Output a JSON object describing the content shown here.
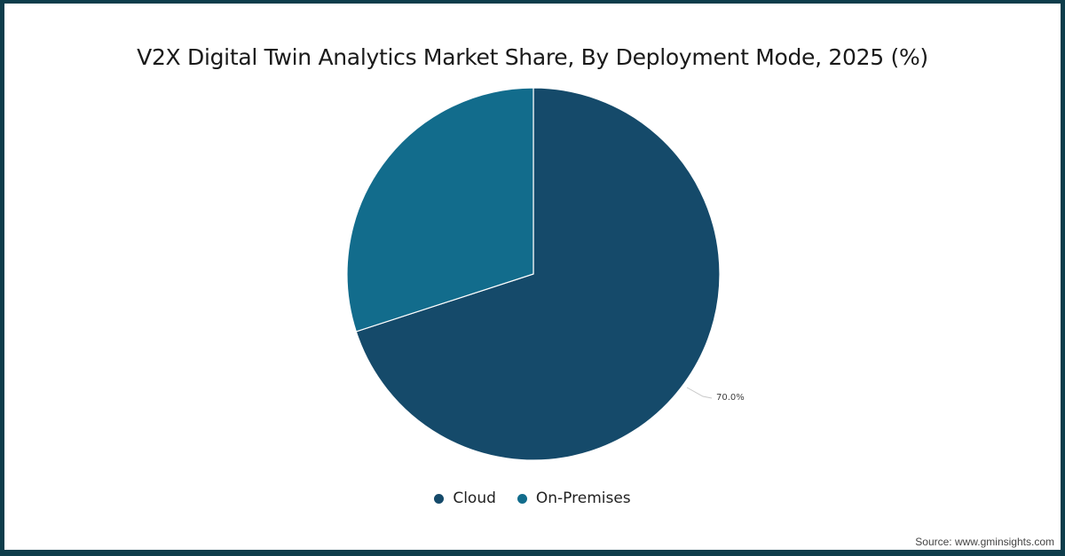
{
  "title": "V2X Digital Twin Analytics Market Share, By Deployment Mode, 2025 (%)",
  "source": "Source: www.gminsights.com",
  "colors": {
    "cloud": "#154a6a",
    "on_premises": "#126c8c",
    "border": "#0e3d4b"
  },
  "data_label": "70.0%",
  "legend": [
    {
      "label": "Cloud",
      "color": "#154a6a"
    },
    {
      "label": "On-Premises",
      "color": "#126c8c"
    }
  ],
  "chart_data": {
    "type": "pie",
    "title": "V2X Digital Twin Analytics Market Share, By Deployment Mode, 2025 (%)",
    "categories": [
      "Cloud",
      "On-Premises"
    ],
    "values": [
      70.0,
      30.0
    ],
    "colors": [
      "#154a6a",
      "#126c8c"
    ],
    "data_labels": [
      "70.0%",
      ""
    ],
    "legend_position": "bottom",
    "start_angle": "12 o'clock, clockwise"
  }
}
